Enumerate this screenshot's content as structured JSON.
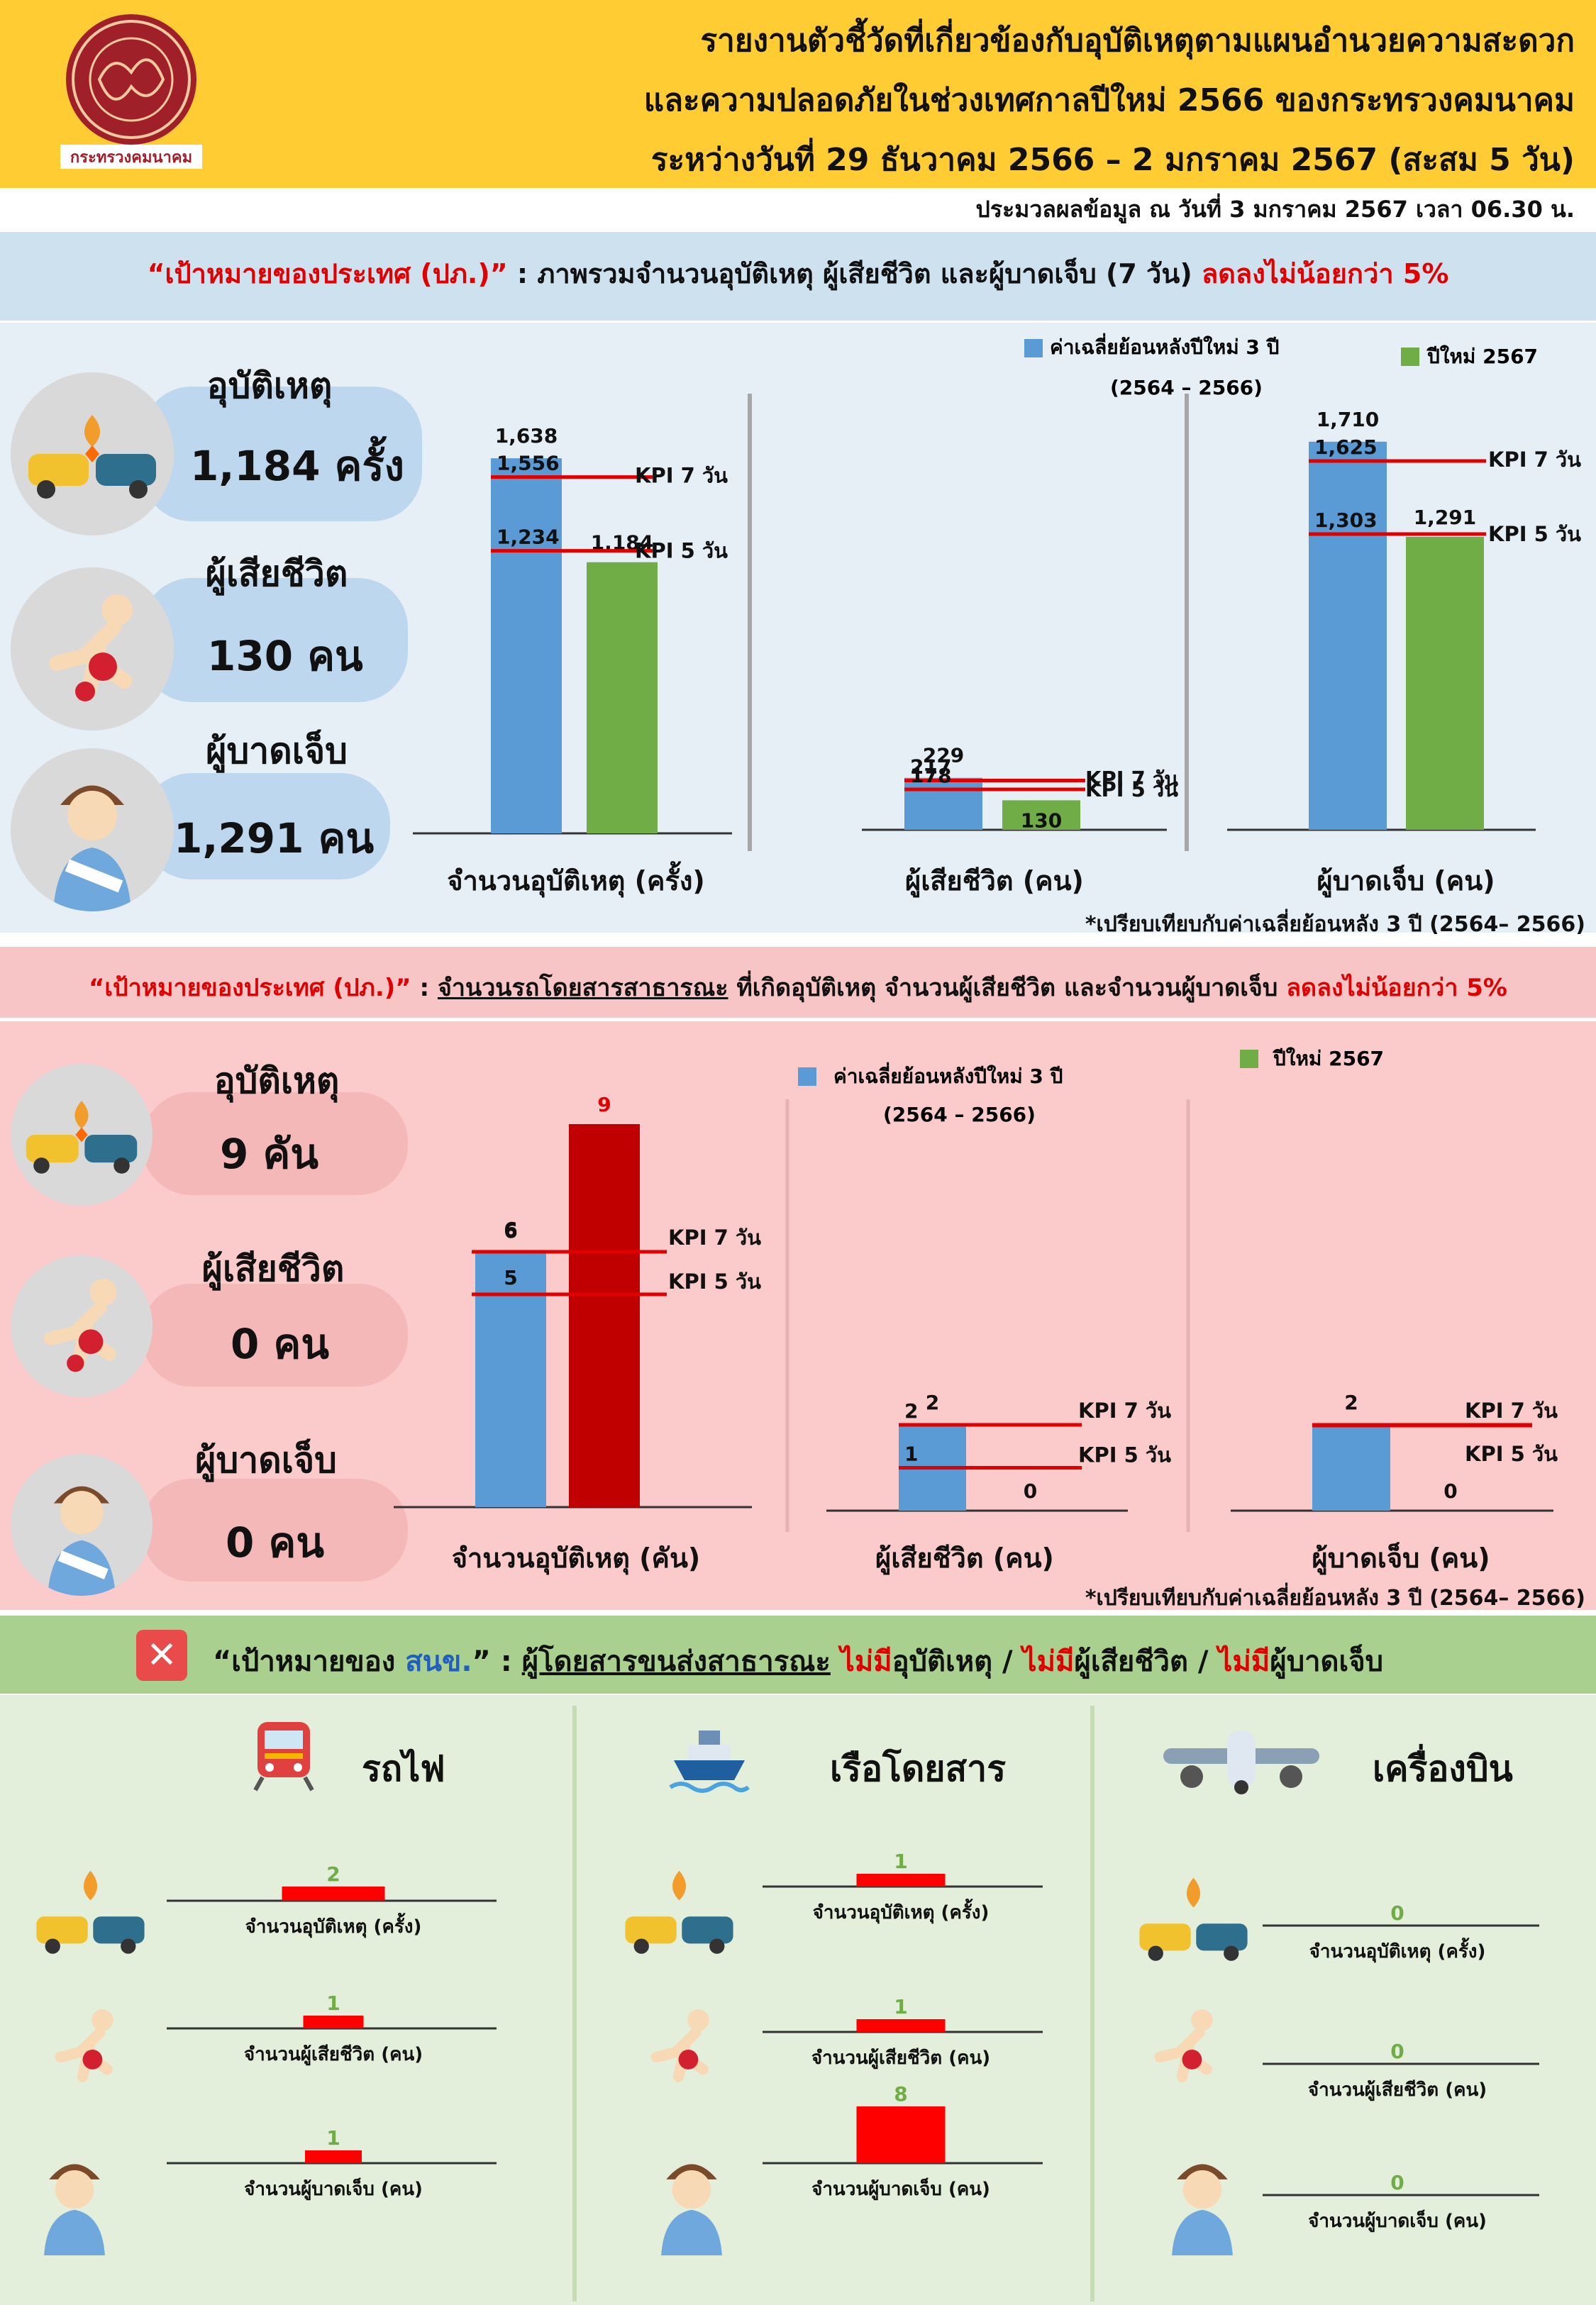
{
  "header": {
    "seal_caption": "กระทรวงคมนาคม",
    "title_line1": "รายงานตัวชี้วัดที่เกี่ยวข้องกับอุบัติเหตุตามแผนอำนวยความสะดวก",
    "title_line2": "และความปลอดภัยในช่วงเทศกาลปีใหม่ 2566 ของกระทรวงคมนาคม",
    "title_line3": "ระหว่างวันที่ 29 ธันวาคม 2566 – 2 มกราคม 2567 (สะสม 5 วัน)",
    "processed": "ประมวลผลข้อมูล ณ วันที่ 3 มกราคม 2567 เวลา 06.30 น."
  },
  "section1": {
    "title_quote": "“เป้าหมายของประเทศ (ปภ.)”",
    "title_text": " : ภาพรวมจำนวนอุบัติเหตุ ผู้เสียชีวิต และผู้บาดเจ็บ (7 วัน) ",
    "title_red": "ลดลงไม่น้อยกว่า 5%",
    "accidents_label": "อุบัติเหตุ",
    "accidents_value": "1,184 ครั้ง",
    "deaths_label": "ผู้เสียชีวิต",
    "deaths_value": "130 คน",
    "injuries_label": "ผู้บาดเจ็บ",
    "injuries_value": "1,291 คน",
    "legend_avg": "ค่าเฉลี่ยย้อนหลังปีใหม่ 3 ปี",
    "legend_avg_years": "(2564 – 2566)",
    "legend_new": "ปีใหม่ 2567",
    "footnote": "*เปรียบเทียบกับค่าเฉลี่ยย้อนหลัง 3 ปี (2564– 2566)"
  },
  "section2": {
    "title_quote": "“เป้าหมายของประเทศ (ปภ.)”",
    "title_text1": " : ",
    "title_underlined": "จำนวนรถโดยสารสาธารณะ",
    "title_text2": " ที่เกิดอุบัติเหตุ จำนวนผู้เสียชีวิต และจำนวนผู้บาดเจ็บ ",
    "title_red": "ลดลงไม่น้อยกว่า 5%",
    "accidents_label": "อุบัติเหตุ",
    "accidents_value": "9 คัน",
    "deaths_label": "ผู้เสียชีวิต",
    "deaths_value": "0 คน",
    "injuries_label": "ผู้บาดเจ็บ",
    "injuries_value": "0 คน",
    "legend_avg": "ค่าเฉลี่ยย้อนหลังปีใหม่ 3 ปี",
    "legend_avg_years": "(2564 – 2566)",
    "legend_new": "ปีใหม่ 2567",
    "footnote": "*เปรียบเทียบกับค่าเฉลี่ยย้อนหลัง 3 ปี (2564– 2566)"
  },
  "section3": {
    "close_symbol": "✕",
    "title_quote": "“เป้าหมายของ ",
    "title_org": "สนข.",
    "title_text1": "” :  ",
    "title_underlined": "ผู้โดยสารขนส่งสาธารณะ",
    "title_red1": "ไม่มี",
    "title_text2": "อุบัติเหตุ / ",
    "title_red2": "ไม่มี",
    "title_text3": "ผู้เสียชีวิต / ",
    "title_red3": "ไม่มี",
    "title_text4": "ผู้บาดเจ็บ",
    "rail_label": "รถไฟ",
    "ship_label": "เรือโดยสาร",
    "plane_label": "เครื่องบิน"
  },
  "colors": {
    "avg_bar": "#5b9bd5",
    "new_bar": "#70ad47",
    "bus_new_bar": "#c00000",
    "kpi_line": "#e00000",
    "mode_bar": "#ff0000",
    "mode_value": "#70ad47"
  },
  "chart_data": [
    {
      "type": "bar",
      "xlabel": "จำนวนอุบัติเหตุ (ครั้ง)",
      "series": [
        {
          "name": "ค่าเฉลี่ยย้อนหลังปีใหม่ 3 ปี",
          "values": [
            1638
          ]
        },
        {
          "name": "ปีใหม่ 2567",
          "values": [
            1184
          ]
        }
      ],
      "kpi": [
        {
          "label": "KPI 7 วัน",
          "value": 1556
        },
        {
          "label": "KPI 5 วัน",
          "value": 1234
        }
      ],
      "ylim": [
        0,
        1750
      ]
    },
    {
      "type": "bar",
      "xlabel": "ผู้เสียชีวิต (คน)",
      "series": [
        {
          "name": "ค่าเฉลี่ยย้อนหลังปีใหม่ 3 ปี",
          "values": [
            229
          ]
        },
        {
          "name": "ปีใหม่ 2567",
          "values": [
            130
          ]
        }
      ],
      "kpi": [
        {
          "label": "KPI 7 วัน",
          "value": 217
        },
        {
          "label": "KPI 5 วัน",
          "value": 178
        }
      ],
      "ylim": [
        0,
        1750
      ]
    },
    {
      "type": "bar",
      "xlabel": "ผู้บาดเจ็บ (คน)",
      "series": [
        {
          "name": "ค่าเฉลี่ยย้อนหลังปีใหม่ 3 ปี",
          "values": [
            1710
          ]
        },
        {
          "name": "ปีใหม่ 2567",
          "values": [
            1291
          ]
        }
      ],
      "kpi": [
        {
          "label": "KPI 7 วัน",
          "value": 1625
        },
        {
          "label": "KPI 5 วัน",
          "value": 1303
        }
      ],
      "ylim": [
        0,
        1750
      ]
    },
    {
      "type": "bar",
      "xlabel": "จำนวนอุบัติเหตุ (คัน)",
      "series": [
        {
          "name": "ค่าเฉลี่ยย้อนหลังปีใหม่ 3 ปี",
          "values": [
            6
          ]
        },
        {
          "name": "ปีใหม่ 2567",
          "values": [
            9
          ]
        }
      ],
      "kpi": [
        {
          "label": "KPI 7 วัน",
          "value": 6
        },
        {
          "label": "KPI 5 วัน",
          "value": 5
        }
      ],
      "ylim": [
        0,
        9.5
      ]
    },
    {
      "type": "bar",
      "xlabel": "ผู้เสียชีวิต (คน)",
      "series": [
        {
          "name": "ค่าเฉลี่ยย้อนหลังปีใหม่ 3 ปี",
          "values": [
            2
          ]
        },
        {
          "name": "ปีใหม่ 2567",
          "values": [
            0
          ]
        }
      ],
      "kpi": [
        {
          "label": "KPI 7 วัน",
          "value": 2
        },
        {
          "label": "KPI 5 วัน",
          "value": 1
        }
      ],
      "ylim": [
        0,
        9.5
      ]
    },
    {
      "type": "bar",
      "xlabel": "ผู้บาดเจ็บ (คน)",
      "series": [
        {
          "name": "ค่าเฉลี่ยย้อนหลังปีใหม่ 3 ปี",
          "values": [
            2
          ]
        },
        {
          "name": "ปีใหม่ 2567",
          "values": [
            0
          ]
        }
      ],
      "kpi": [
        {
          "label": "KPI 7 วัน",
          "value": 2
        },
        {
          "label": "KPI 5 วัน",
          "value": 2
        }
      ],
      "ylim": [
        0,
        9.5
      ]
    }
  ],
  "mode_charts": {
    "rail": [
      {
        "label": "จำนวนอุบัติเหตุ (ครั้ง)",
        "value": 2
      },
      {
        "label": "จำนวนผู้เสียชีวิต (คน)",
        "value": 1
      },
      {
        "label": "จำนวนผู้บาดเจ็บ (คน)",
        "value": 1
      }
    ],
    "ship": [
      {
        "label": "จำนวนอุบัติเหตุ (ครั้ง)",
        "value": 1
      },
      {
        "label": "จำนวนผู้เสียชีวิต (คน)",
        "value": 1
      },
      {
        "label": "จำนวนผู้บาดเจ็บ (คน)",
        "value": 8
      }
    ],
    "plane": [
      {
        "label": "จำนวนอุบัติเหตุ (ครั้ง)",
        "value": 0
      },
      {
        "label": "จำนวนผู้เสียชีวิต (คน)",
        "value": 0
      },
      {
        "label": "จำนวนผู้บาดเจ็บ (คน)",
        "value": 0
      }
    ]
  }
}
